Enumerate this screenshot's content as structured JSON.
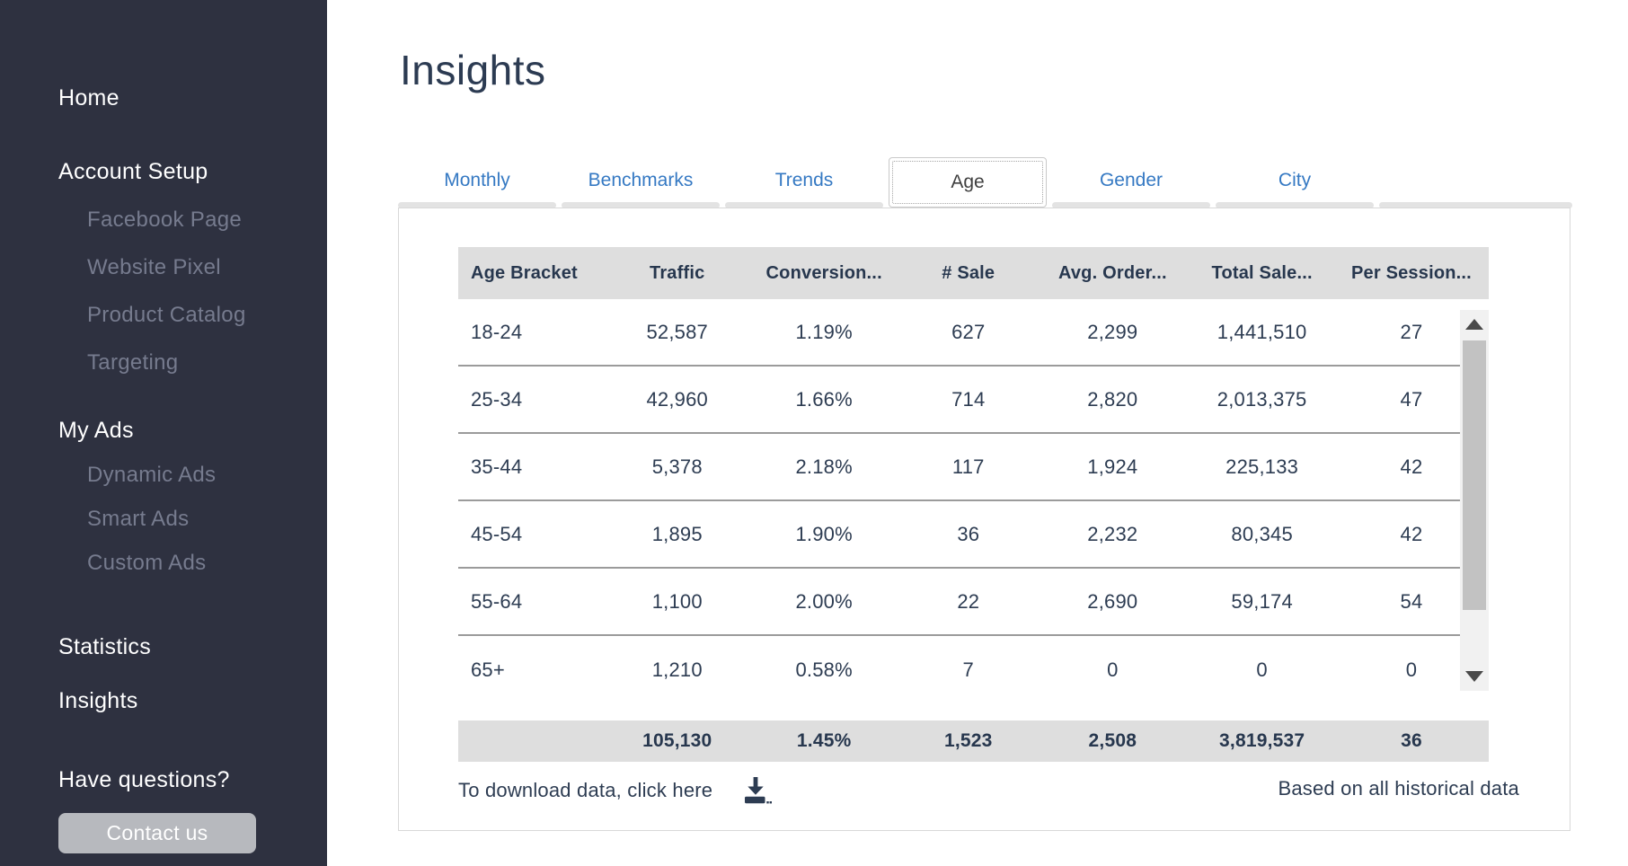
{
  "sidebar": {
    "items": [
      {
        "label": "Home",
        "level": 1
      },
      {
        "label": "Account Setup",
        "level": 1
      },
      {
        "label": "Facebook Page",
        "level": 2
      },
      {
        "label": "Website Pixel",
        "level": 2
      },
      {
        "label": "Product Catalog",
        "level": 2
      },
      {
        "label": "Targeting",
        "level": 2
      },
      {
        "label": "My Ads",
        "level": 1
      },
      {
        "label": "Dynamic Ads",
        "level": 2
      },
      {
        "label": "Smart Ads",
        "level": 2
      },
      {
        "label": "Custom Ads",
        "level": 2
      },
      {
        "label": "Statistics",
        "level": 1
      },
      {
        "label": "Insights",
        "level": 1
      }
    ],
    "have_questions": "Have questions?",
    "contact_button": "Contact us"
  },
  "main": {
    "title": "Insights",
    "tabs": [
      {
        "label": "Monthly",
        "active": false
      },
      {
        "label": "Benchmarks",
        "active": false
      },
      {
        "label": "Trends",
        "active": false
      },
      {
        "label": "Age",
        "active": true
      },
      {
        "label": "Gender",
        "active": false
      },
      {
        "label": "City",
        "active": false
      }
    ],
    "table": {
      "headers": [
        "Age Bracket",
        "Traffic",
        "Conversion...",
        "# Sale",
        "Avg. Order...",
        "Total Sale...",
        "Per Session..."
      ],
      "rows": [
        [
          "18-24",
          "52,587",
          "1.19%",
          "627",
          "2,299",
          "1,441,510",
          "27"
        ],
        [
          "25-34",
          "42,960",
          "1.66%",
          "714",
          "2,820",
          "2,013,375",
          "47"
        ],
        [
          "35-44",
          "5,378",
          "2.18%",
          "117",
          "1,924",
          "225,133",
          "42"
        ],
        [
          "45-54",
          "1,895",
          "1.90%",
          "36",
          "2,232",
          "80,345",
          "42"
        ],
        [
          "55-64",
          "1,100",
          "2.00%",
          "22",
          "2,690",
          "59,174",
          "54"
        ],
        [
          "65+",
          "1,210",
          "0.58%",
          "7",
          "0",
          "0",
          "0"
        ]
      ],
      "totals": [
        "",
        "105,130",
        "1.45%",
        "1,523",
        "2,508",
        "3,819,537",
        "36"
      ]
    },
    "footer": {
      "download_text": "To download data, click here",
      "note": "Based on all historical data"
    }
  },
  "icons": {
    "download": "download-icon",
    "scroll_up": "scroll-up-arrow",
    "scroll_down": "scroll-down-arrow"
  },
  "colors": {
    "sidebar_bg": "#2e3140",
    "sidebar_muted_text": "#767b8e",
    "accent_blue": "#3579c3",
    "navy_text": "#2d3c52",
    "header_row_bg": "#dedede",
    "row_divider": "#9b9b9b",
    "contact_button_bg": "#b7b9be",
    "panel_border": "#d8d8d8",
    "scrollbar_track": "#f1f1f1",
    "scrollbar_thumb": "#c2c2c2"
  }
}
